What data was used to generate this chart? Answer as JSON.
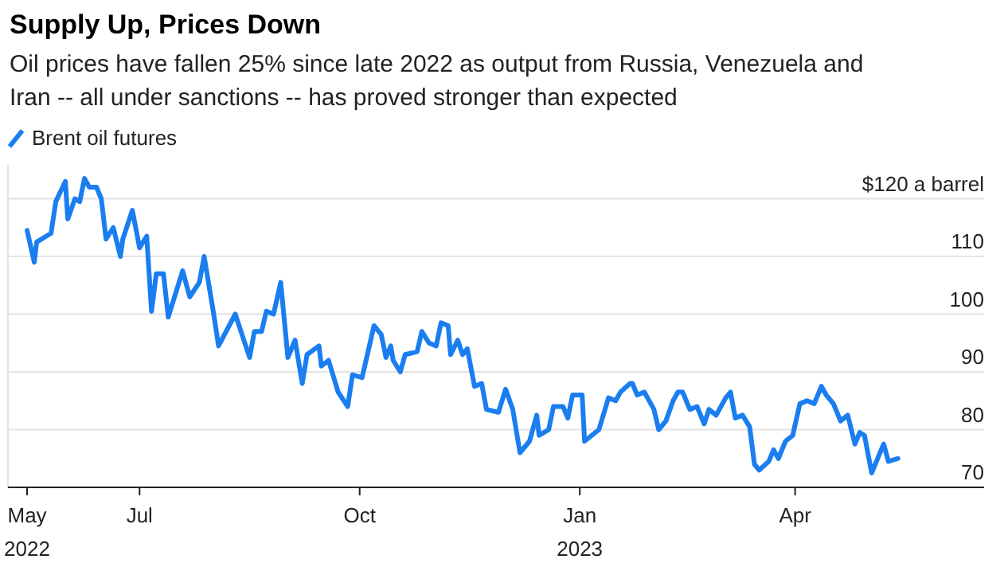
{
  "chart_data": {
    "type": "line",
    "title": "Supply Up, Prices Down",
    "subtitle": "Oil prices have fallen 25% since late 2022 as output from Russia, Venezuela and Iran -- all under sanctions -- has proved stronger than expected",
    "x": [
      "2022-05-15",
      "2022-05-18",
      "2022-05-19",
      "2022-05-25",
      "2022-05-27",
      "2022-05-31",
      "2022-06-01",
      "2022-06-04",
      "2022-06-06",
      "2022-06-08",
      "2022-06-10",
      "2022-06-13",
      "2022-06-15",
      "2022-06-17",
      "2022-06-20",
      "2022-06-23",
      "2022-06-24",
      "2022-06-28",
      "2022-07-01",
      "2022-07-04",
      "2022-07-06",
      "2022-07-08",
      "2022-07-11",
      "2022-07-13",
      "2022-07-19",
      "2022-07-22",
      "2022-07-26",
      "2022-07-28",
      "2022-08-01",
      "2022-08-03",
      "2022-08-10",
      "2022-08-16",
      "2022-08-18",
      "2022-08-21",
      "2022-08-23",
      "2022-08-26",
      "2022-08-29",
      "2022-09-01",
      "2022-09-04",
      "2022-09-07",
      "2022-09-09",
      "2022-09-14",
      "2022-09-15",
      "2022-09-18",
      "2022-09-22",
      "2022-09-26",
      "2022-09-28",
      "2022-10-02",
      "2022-10-07",
      "2022-10-10",
      "2022-10-12",
      "2022-10-14",
      "2022-10-15",
      "2022-10-18",
      "2022-10-20",
      "2022-10-25",
      "2022-10-27",
      "2022-10-30",
      "2022-11-02",
      "2022-11-04",
      "2022-11-07",
      "2022-11-08",
      "2022-11-11",
      "2022-11-13",
      "2022-11-15",
      "2022-11-18",
      "2022-11-21",
      "2022-11-23",
      "2022-11-28",
      "2022-12-01",
      "2022-12-04",
      "2022-12-07",
      "2022-12-11",
      "2022-12-14",
      "2022-12-15",
      "2022-12-19",
      "2022-12-21",
      "2022-12-25",
      "2022-12-27",
      "2022-12-29",
      "2023-01-02",
      "2023-01-03",
      "2023-01-09",
      "2023-01-13",
      "2023-01-16",
      "2023-01-18",
      "2023-01-22",
      "2023-01-23",
      "2023-01-25",
      "2023-01-28",
      "2023-02-01",
      "2023-02-03",
      "2023-02-06",
      "2023-02-09",
      "2023-02-11",
      "2023-02-13",
      "2023-02-16",
      "2023-02-19",
      "2023-02-22",
      "2023-02-24",
      "2023-02-27",
      "2023-03-03",
      "2023-03-05",
      "2023-03-07",
      "2023-03-10",
      "2023-03-13",
      "2023-03-15",
      "2023-03-17",
      "2023-03-21",
      "2023-03-23",
      "2023-03-25",
      "2023-03-28",
      "2023-03-31",
      "2023-04-03",
      "2023-04-06",
      "2023-04-09",
      "2023-04-12",
      "2023-04-14",
      "2023-04-17",
      "2023-04-20",
      "2023-04-23",
      "2023-04-26",
      "2023-04-28",
      "2023-04-30",
      "2023-05-03",
      "2023-05-06",
      "2023-05-08",
      "2023-05-10",
      "2023-05-14"
    ],
    "series": [
      {
        "name": "Brent oil futures",
        "color": "#1a7ef0",
        "values": [
          114.5,
          109,
          112.5,
          114,
          119.5,
          123,
          116.5,
          120,
          119.5,
          123.5,
          122,
          122,
          120,
          113,
          115,
          110,
          113,
          118,
          111.5,
          113.5,
          100.5,
          107,
          107,
          99.5,
          107.5,
          103,
          105.5,
          110,
          100,
          94.5,
          100,
          92.5,
          97,
          97,
          100.5,
          100,
          105.5,
          92.5,
          95.5,
          88,
          93,
          94.5,
          91,
          92,
          86.5,
          84,
          89.5,
          89,
          98,
          96.5,
          92.5,
          94.5,
          92,
          90,
          93,
          93.5,
          97,
          95,
          94.5,
          98.5,
          98,
          93,
          95.5,
          93,
          94,
          87.5,
          88,
          83.5,
          83,
          87,
          83.5,
          76,
          78,
          82.5,
          79,
          80,
          84,
          84,
          82,
          86,
          86,
          78,
          80,
          85.5,
          85,
          86.5,
          88,
          88,
          86,
          86.5,
          83.5,
          80,
          81.5,
          85,
          86.5,
          86.5,
          83.5,
          84,
          81,
          83.5,
          82.5,
          85.5,
          86.5,
          82,
          82.5,
          80.5,
          74,
          73,
          74.5,
          76.5,
          75,
          78,
          79,
          84.5,
          85,
          84.5,
          87.5,
          86,
          84.5,
          81.5,
          82.5,
          77.5,
          79.5,
          79,
          72.5,
          75.5,
          77.5,
          74.5,
          75
        ]
      }
    ],
    "xlim": [
      "2022-05-07",
      "2023-06-19"
    ],
    "xticks": [
      {
        "value": "2022-05-15",
        "label": "May\n2022"
      },
      {
        "value": "2022-07-01",
        "label": "Jul"
      },
      {
        "value": "2022-10-01",
        "label": "Oct"
      },
      {
        "value": "2023-01-01",
        "label": "Jan\n2023"
      },
      {
        "value": "2023-04-01",
        "label": "Apr"
      }
    ],
    "ylim": [
      70,
      126
    ],
    "yticks": [
      70,
      80,
      90,
      100,
      110,
      {
        "value": 120,
        "label": "$120 a barrel"
      }
    ],
    "grid": "y",
    "legend": "top left",
    "line_style": "solid",
    "marker": "none"
  }
}
